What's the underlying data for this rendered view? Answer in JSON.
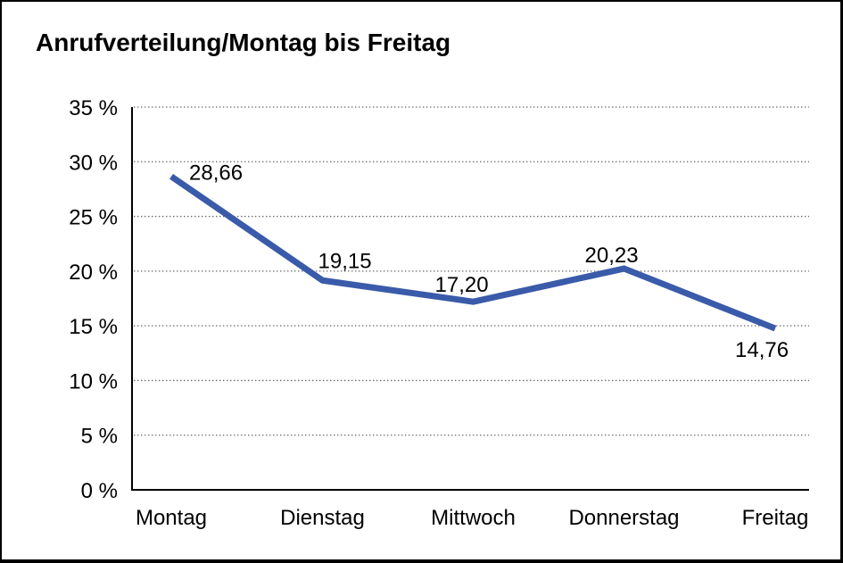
{
  "chart_data": {
    "type": "line",
    "title": "Anrufverteilung/Montag bis Freitag",
    "categories": [
      "Montag",
      "Dienstag",
      "Mittwoch",
      "Donnerstag",
      "Freitag"
    ],
    "series": [
      {
        "name": "Anrufverteilung",
        "values": [
          28.66,
          19.15,
          17.2,
          20.23,
          14.76
        ]
      }
    ],
    "value_labels": [
      "28,66",
      "19,15",
      "17,20",
      "20,23",
      "14,76"
    ],
    "xlabel": "",
    "ylabel": "",
    "ylim": [
      0,
      35
    ],
    "y_tick_step": 5,
    "y_tick_labels": [
      "0 %",
      "5 %",
      "10 %",
      "15 %",
      "20 %",
      "25 %",
      "30 %",
      "35 %"
    ],
    "grid": "horizontal-dotted",
    "legend": "none",
    "colors": {
      "line": "#3A5BA9",
      "axis": "#000000",
      "grid": "#666666",
      "text": "#000000",
      "background": "#FFFFFF",
      "frame_border": "#000000"
    }
  }
}
